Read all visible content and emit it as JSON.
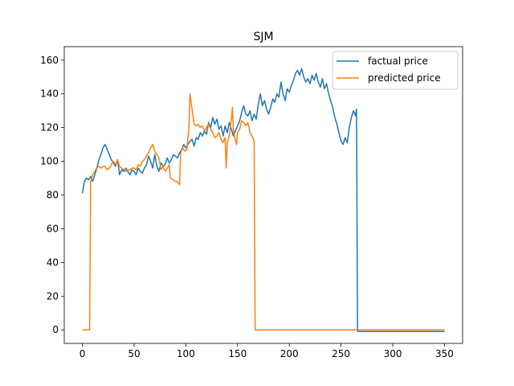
{
  "chart_data": {
    "type": "line",
    "title": "SJM",
    "xlabel": "",
    "ylabel": "",
    "xlim": [
      -17.5,
      367.5
    ],
    "ylim": [
      -8,
      168
    ],
    "xticks": [
      0,
      50,
      100,
      150,
      200,
      250,
      300,
      350
    ],
    "yticks": [
      0,
      20,
      40,
      60,
      80,
      100,
      120,
      140,
      160
    ],
    "grid": false,
    "legend_position": "top-right",
    "series": [
      {
        "name": "factual price",
        "color": "#1f77b4",
        "points": [
          [
            0,
            81
          ],
          [
            2,
            88
          ],
          [
            4,
            90
          ],
          [
            6,
            89
          ],
          [
            8,
            91
          ],
          [
            10,
            88
          ],
          [
            12,
            92
          ],
          [
            14,
            96
          ],
          [
            16,
            101
          ],
          [
            18,
            104
          ],
          [
            20,
            108
          ],
          [
            22,
            110
          ],
          [
            24,
            107
          ],
          [
            26,
            104
          ],
          [
            28,
            101
          ],
          [
            30,
            99
          ],
          [
            32,
            97
          ],
          [
            34,
            101
          ],
          [
            36,
            92
          ],
          [
            38,
            95
          ],
          [
            40,
            94
          ],
          [
            42,
            96
          ],
          [
            44,
            94
          ],
          [
            46,
            92
          ],
          [
            48,
            95
          ],
          [
            50,
            94
          ],
          [
            52,
            92
          ],
          [
            54,
            96
          ],
          [
            56,
            94
          ],
          [
            58,
            93
          ],
          [
            60,
            96
          ],
          [
            62,
            98
          ],
          [
            64,
            103
          ],
          [
            66,
            100
          ],
          [
            68,
            96
          ],
          [
            70,
            104
          ],
          [
            72,
            97
          ],
          [
            74,
            94
          ],
          [
            76,
            99
          ],
          [
            78,
            97
          ],
          [
            80,
            98
          ],
          [
            82,
            102
          ],
          [
            84,
            99
          ],
          [
            86,
            101
          ],
          [
            88,
            104
          ],
          [
            90,
            103
          ],
          [
            92,
            102
          ],
          [
            94,
            105
          ],
          [
            96,
            107
          ],
          [
            98,
            110
          ],
          [
            100,
            108
          ],
          [
            102,
            110
          ],
          [
            104,
            112
          ],
          [
            106,
            113
          ],
          [
            108,
            109
          ],
          [
            110,
            114
          ],
          [
            112,
            113
          ],
          [
            114,
            117
          ],
          [
            116,
            115
          ],
          [
            118,
            118
          ],
          [
            120,
            116
          ],
          [
            122,
            123
          ],
          [
            124,
            120
          ],
          [
            126,
            126
          ],
          [
            128,
            122
          ],
          [
            130,
            125
          ],
          [
            132,
            119
          ],
          [
            134,
            121
          ],
          [
            136,
            115
          ],
          [
            138,
            121
          ],
          [
            140,
            117
          ],
          [
            142,
            123
          ],
          [
            144,
            119
          ],
          [
            146,
            115
          ],
          [
            148,
            118
          ],
          [
            150,
            121
          ],
          [
            152,
            124
          ],
          [
            154,
            129
          ],
          [
            156,
            133
          ],
          [
            158,
            128
          ],
          [
            160,
            127
          ],
          [
            162,
            130
          ],
          [
            164,
            124
          ],
          [
            166,
            128
          ],
          [
            168,
            125
          ],
          [
            170,
            134
          ],
          [
            172,
            140
          ],
          [
            174,
            133
          ],
          [
            176,
            136
          ],
          [
            178,
            131
          ],
          [
            180,
            128
          ],
          [
            182,
            132
          ],
          [
            184,
            137
          ],
          [
            186,
            135
          ],
          [
            188,
            140
          ],
          [
            190,
            138
          ],
          [
            192,
            147
          ],
          [
            194,
            140
          ],
          [
            196,
            136
          ],
          [
            198,
            143
          ],
          [
            200,
            141
          ],
          [
            202,
            145
          ],
          [
            204,
            148
          ],
          [
            206,
            152
          ],
          [
            208,
            154
          ],
          [
            210,
            151
          ],
          [
            212,
            155
          ],
          [
            214,
            150
          ],
          [
            216,
            147
          ],
          [
            218,
            149
          ],
          [
            220,
            146
          ],
          [
            222,
            151
          ],
          [
            224,
            148
          ],
          [
            226,
            152
          ],
          [
            228,
            147
          ],
          [
            230,
            144
          ],
          [
            232,
            149
          ],
          [
            234,
            143
          ],
          [
            236,
            146
          ],
          [
            238,
            140
          ],
          [
            240,
            136
          ],
          [
            242,
            132
          ],
          [
            244,
            126
          ],
          [
            246,
            122
          ],
          [
            248,
            117
          ],
          [
            250,
            112
          ],
          [
            252,
            110
          ],
          [
            254,
            114
          ],
          [
            256,
            111
          ],
          [
            258,
            120
          ],
          [
            260,
            126
          ],
          [
            262,
            130
          ],
          [
            264,
            127
          ],
          [
            265,
            131
          ],
          [
            266,
            -1
          ],
          [
            300,
            -1
          ],
          [
            350,
            -1
          ]
        ]
      },
      {
        "name": "predicted price",
        "color": "#ff7f0e",
        "points": [
          [
            0,
            0
          ],
          [
            7,
            0
          ],
          [
            8,
            88
          ],
          [
            10,
            92
          ],
          [
            12,
            94
          ],
          [
            14,
            96
          ],
          [
            16,
            97
          ],
          [
            18,
            96
          ],
          [
            20,
            97
          ],
          [
            22,
            97
          ],
          [
            24,
            95
          ],
          [
            26,
            96
          ],
          [
            28,
            98
          ],
          [
            30,
            100
          ],
          [
            32,
            98
          ],
          [
            34,
            101
          ],
          [
            36,
            97
          ],
          [
            38,
            96
          ],
          [
            40,
            95
          ],
          [
            42,
            94
          ],
          [
            44,
            95
          ],
          [
            46,
            95
          ],
          [
            48,
            96
          ],
          [
            50,
            96
          ],
          [
            52,
            95
          ],
          [
            54,
            98
          ],
          [
            56,
            97
          ],
          [
            58,
            100
          ],
          [
            60,
            101
          ],
          [
            62,
            103
          ],
          [
            64,
            105
          ],
          [
            66,
            108
          ],
          [
            68,
            110
          ],
          [
            70,
            106
          ],
          [
            72,
            104
          ],
          [
            74,
            102
          ],
          [
            76,
            95
          ],
          [
            78,
            97
          ],
          [
            80,
            94
          ],
          [
            82,
            96
          ],
          [
            84,
            98
          ],
          [
            85,
            90
          ],
          [
            88,
            89
          ],
          [
            90,
            88
          ],
          [
            92,
            88
          ],
          [
            94,
            86
          ],
          [
            95,
            105
          ],
          [
            97,
            108
          ],
          [
            99,
            106
          ],
          [
            101,
            107
          ],
          [
            103,
            120
          ],
          [
            104,
            140
          ],
          [
            106,
            131
          ],
          [
            108,
            122
          ],
          [
            110,
            121
          ],
          [
            112,
            122
          ],
          [
            114,
            120
          ],
          [
            116,
            121
          ],
          [
            118,
            118
          ],
          [
            120,
            120
          ],
          [
            122,
            122
          ],
          [
            124,
            119
          ],
          [
            126,
            117
          ],
          [
            128,
            114
          ],
          [
            130,
            115
          ],
          [
            132,
            117
          ],
          [
            134,
            113
          ],
          [
            136,
            111
          ],
          [
            138,
            114
          ],
          [
            139,
            96
          ],
          [
            140,
            111
          ],
          [
            142,
            115
          ],
          [
            144,
            125
          ],
          [
            145,
            132
          ],
          [
            146,
            118
          ],
          [
            148,
            112
          ],
          [
            149,
            110
          ],
          [
            150,
            117
          ],
          [
            152,
            119
          ],
          [
            154,
            124
          ],
          [
            156,
            123
          ],
          [
            158,
            121
          ],
          [
            160,
            123
          ],
          [
            162,
            117
          ],
          [
            164,
            115
          ],
          [
            166,
            112
          ],
          [
            167,
            0
          ],
          [
            200,
            0
          ],
          [
            250,
            0
          ],
          [
            300,
            0
          ],
          [
            350,
            0
          ]
        ]
      }
    ]
  }
}
